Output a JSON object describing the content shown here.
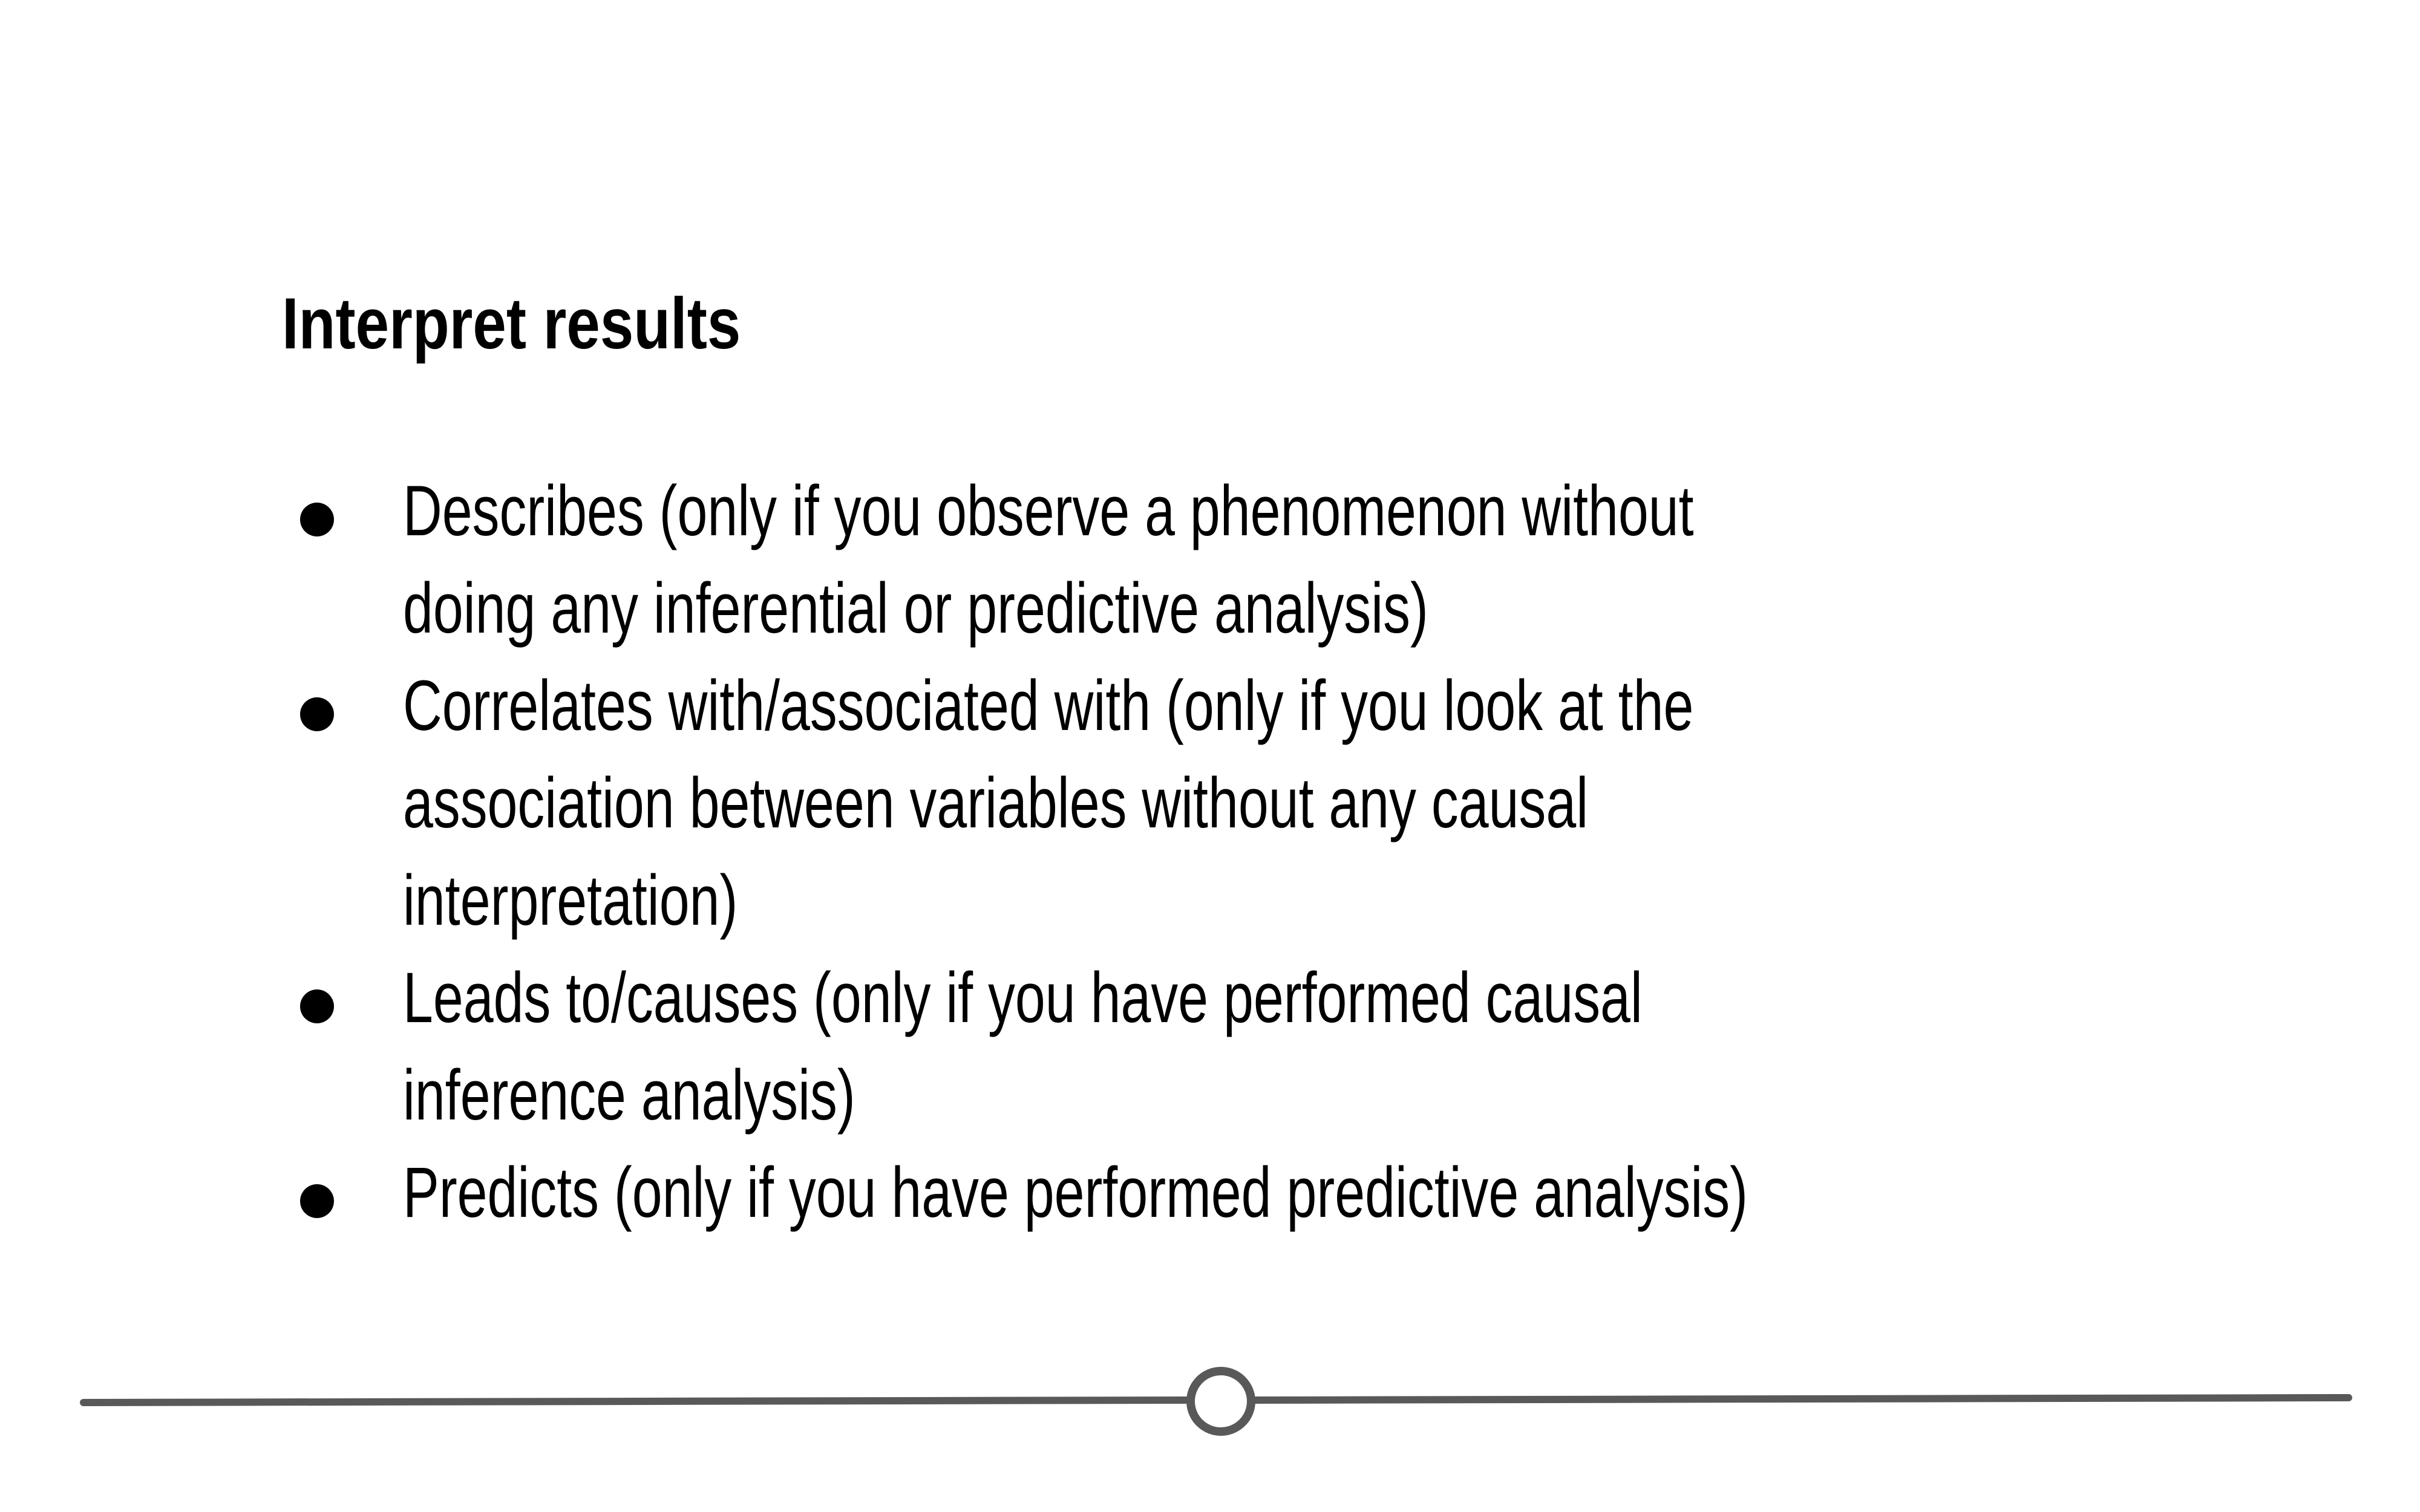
{
  "slide": {
    "heading": "Interpret results",
    "bullets": [
      "Describes (only if you observe a phenomenon without doing any inferential or predictive analysis)",
      "Correlates with/associated with (only if you look at the association between variables without any causal interpretation)",
      "Leads to/causes (only if you have performed causal inference analysis)",
      "Predicts (only if you have performed predictive analysis)"
    ]
  },
  "colors": {
    "text": "#000000",
    "divider": "#595959",
    "background": "#ffffff"
  }
}
